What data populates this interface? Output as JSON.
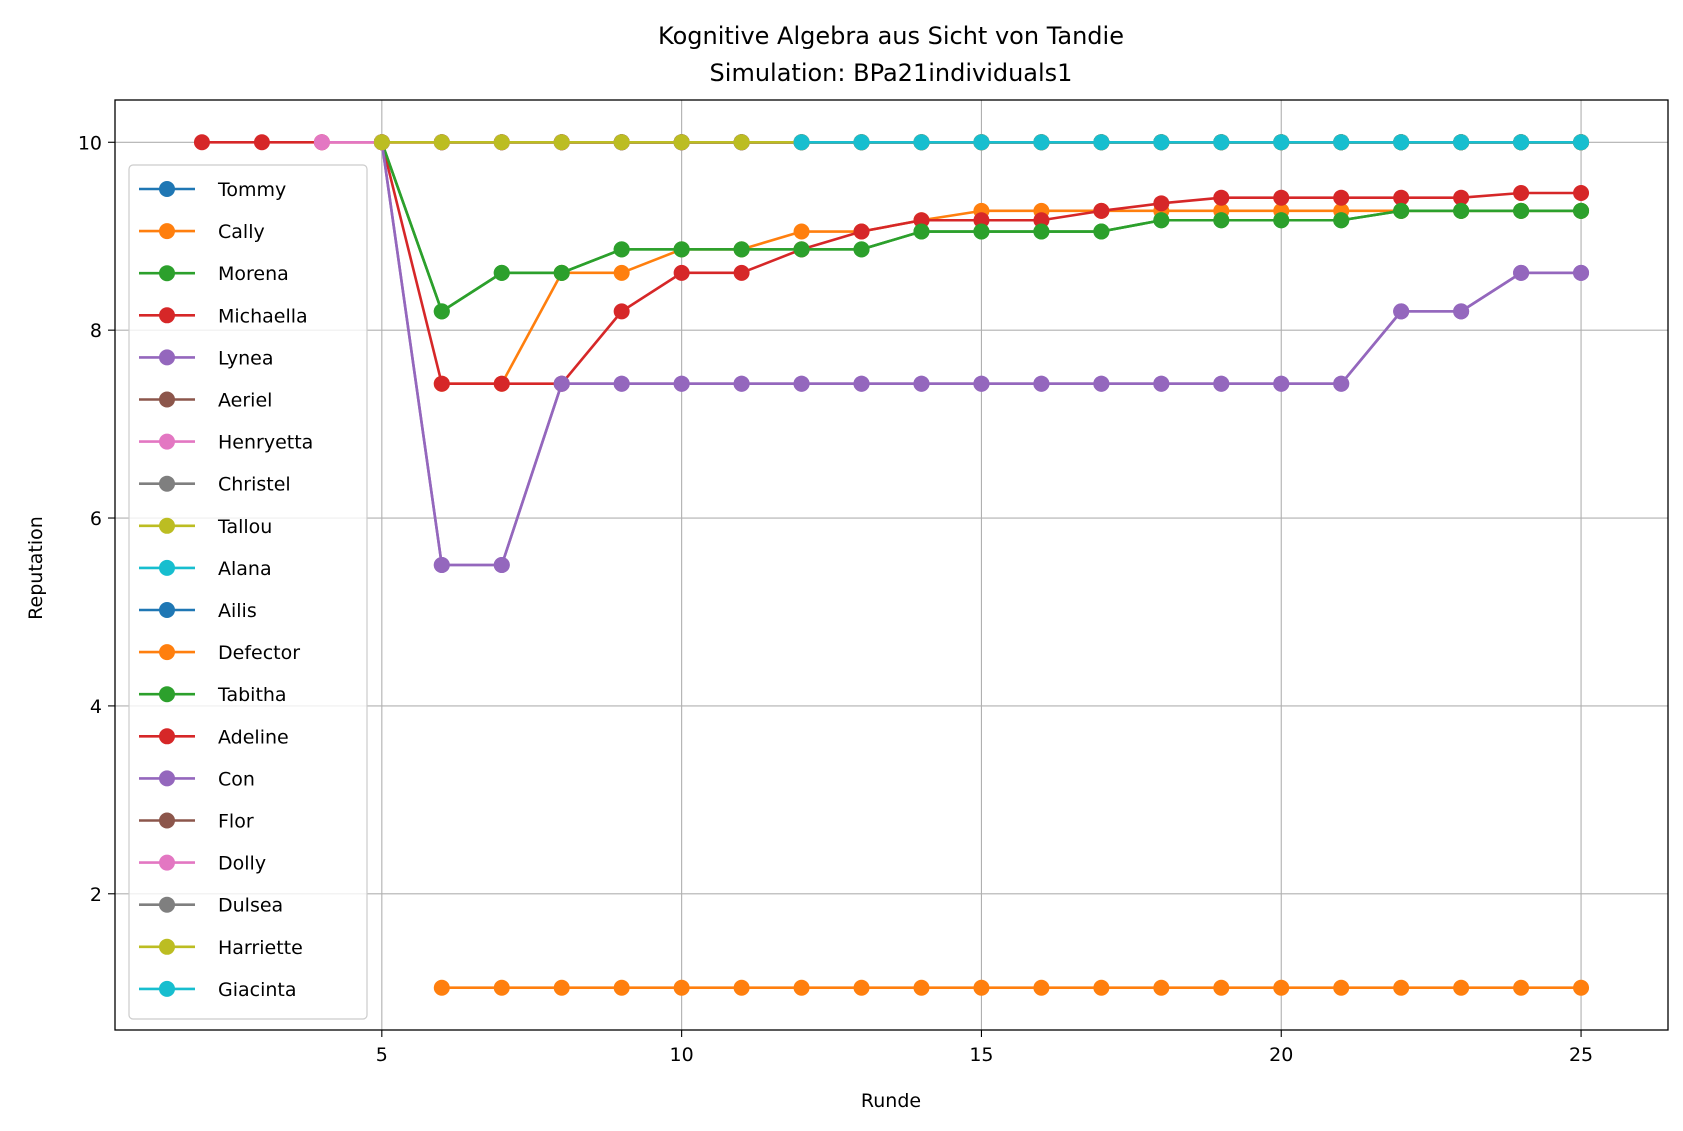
{
  "chart_data": {
    "type": "line",
    "title": "Kognitive Algebra aus Sicht von Tandie",
    "subtitle": "Simulation: BPa21individuals1",
    "xlabel": "Runde",
    "ylabel": "Reputation",
    "xlim": [
      0.55,
      26.45
    ],
    "ylim": [
      0.55,
      10.45
    ],
    "xticks": [
      5,
      10,
      15,
      20,
      25
    ],
    "yticks": [
      2,
      4,
      6,
      8,
      10
    ],
    "grid": true,
    "legend_position": "left",
    "series": [
      {
        "name": "Tommy",
        "color": "#1f77b4",
        "x": [
          6,
          7,
          8,
          9,
          10,
          11,
          12,
          13,
          14,
          15,
          16,
          17,
          18,
          19,
          20,
          21,
          22,
          23,
          24,
          25
        ],
        "y": [
          10,
          10,
          10,
          10,
          10,
          10,
          10,
          10,
          10,
          10,
          10,
          10,
          10,
          10,
          10,
          10,
          10,
          10,
          10,
          10
        ]
      },
      {
        "name": "Cally",
        "color": "#ff7f0e",
        "x": [
          6,
          7,
          8,
          9,
          10,
          11,
          12,
          13,
          14,
          15,
          16,
          17,
          18,
          19,
          20,
          21,
          22,
          23,
          24,
          25
        ],
        "y": [
          7.43,
          7.43,
          8.61,
          8.61,
          8.86,
          8.86,
          9.05,
          9.05,
          9.17,
          9.27,
          9.27,
          9.27,
          9.27,
          9.27,
          9.27,
          9.27,
          9.27,
          9.27,
          9.27,
          9.27
        ]
      },
      {
        "name": "Morena",
        "color": "#2ca02c",
        "x": [
          5,
          6,
          7,
          8,
          9,
          10,
          11,
          12,
          13,
          14,
          15,
          16,
          17,
          18,
          19,
          20,
          21,
          22,
          23,
          24,
          25
        ],
        "y": [
          10,
          8.2,
          8.61,
          8.61,
          8.86,
          8.86,
          8.86,
          8.86,
          8.86,
          9.05,
          9.05,
          9.05,
          9.05,
          9.17,
          9.17,
          9.17,
          9.17,
          9.27,
          9.27,
          9.27,
          9.27
        ]
      },
      {
        "name": "Michaella",
        "color": "#d62728",
        "x": [
          5,
          6,
          7,
          8,
          9,
          10,
          11,
          12,
          13,
          14,
          15,
          16,
          17,
          18,
          19,
          20,
          21,
          22,
          23,
          24,
          25
        ],
        "y": [
          10,
          7.43,
          7.43,
          7.43,
          8.2,
          8.61,
          8.61,
          8.86,
          9.05,
          9.17,
          9.17,
          9.17,
          9.27,
          9.35,
          9.41,
          9.41,
          9.41,
          9.41,
          9.41,
          9.46,
          9.46
        ]
      },
      {
        "name": "Lynea",
        "color": "#9467bd",
        "x": [
          5,
          6,
          7,
          8,
          9,
          10,
          11,
          12,
          13,
          14,
          15,
          16,
          17,
          18,
          19,
          20,
          21,
          22,
          23,
          24,
          25
        ],
        "y": [
          10,
          5.5,
          5.5,
          7.43,
          7.43,
          7.43,
          7.43,
          7.43,
          7.43,
          7.43,
          7.43,
          7.43,
          7.43,
          7.43,
          7.43,
          7.43,
          7.43,
          8.2,
          8.2,
          8.61,
          8.61
        ]
      },
      {
        "name": "Aeriel",
        "color": "#8c564b",
        "x": [
          8,
          9,
          10,
          11,
          12,
          13,
          14,
          15,
          16,
          17,
          18,
          19,
          20,
          21,
          22,
          23,
          24,
          25
        ],
        "y": [
          10,
          10,
          10,
          10,
          10,
          10,
          10,
          10,
          10,
          10,
          10,
          10,
          10,
          10,
          10,
          10,
          10,
          10
        ]
      },
      {
        "name": "Henryetta",
        "color": "#e377c2",
        "x": [
          4,
          5,
          6,
          7,
          8,
          9,
          10,
          11,
          12,
          13,
          14,
          15,
          16,
          17,
          18,
          19,
          20,
          21,
          22,
          23,
          24,
          25
        ],
        "y": [
          10,
          10,
          10,
          10,
          10,
          10,
          10,
          10,
          10,
          10,
          10,
          10,
          10,
          10,
          10,
          10,
          10,
          10,
          10,
          10,
          10,
          10
        ]
      },
      {
        "name": "Christel",
        "color": "#7f7f7f",
        "x": [
          9,
          10,
          11,
          12,
          13,
          14,
          15,
          16,
          17,
          18,
          19,
          20,
          21,
          22,
          23,
          24,
          25
        ],
        "y": [
          10,
          10,
          10,
          10,
          10,
          10,
          10,
          10,
          10,
          10,
          10,
          10,
          10,
          10,
          10,
          10,
          10
        ]
      },
      {
        "name": "Tallou",
        "color": "#bcbd22",
        "x": [
          5,
          6,
          7,
          8,
          9,
          10,
          11,
          12,
          13,
          14,
          15,
          16,
          17,
          18,
          19,
          20,
          21,
          22,
          23,
          24,
          25
        ],
        "y": [
          10,
          10,
          10,
          10,
          10,
          10,
          10,
          10,
          10,
          10,
          10,
          10,
          10,
          10,
          10,
          10,
          10,
          10,
          10,
          10,
          10
        ]
      },
      {
        "name": "Alana",
        "color": "#17becf",
        "x": [
          12,
          13,
          14,
          15,
          16,
          17,
          18,
          19,
          20,
          21,
          22,
          23,
          24,
          25
        ],
        "y": [
          10,
          10,
          10,
          10,
          10,
          10,
          10,
          10,
          10,
          10,
          10,
          10,
          10,
          10
        ]
      },
      {
        "name": "Ailis",
        "color": "#1f77b4",
        "x": [
          6,
          7,
          8,
          9,
          10,
          11,
          12,
          13,
          14,
          15,
          16,
          17,
          18,
          19,
          20,
          21,
          22,
          23,
          24,
          25
        ],
        "y": [
          10,
          10,
          10,
          10,
          10,
          10,
          10,
          10,
          10,
          10,
          10,
          10,
          10,
          10,
          10,
          10,
          10,
          10,
          10,
          10
        ]
      },
      {
        "name": "Defector",
        "color": "#ff7f0e",
        "x": [
          6,
          7,
          8,
          9,
          10,
          11,
          12,
          13,
          14,
          15,
          16,
          17,
          18,
          19,
          20,
          21,
          22,
          23,
          24,
          25
        ],
        "y": [
          1,
          1,
          1,
          1,
          1,
          1,
          1,
          1,
          1,
          1,
          1,
          1,
          1,
          1,
          1,
          1,
          1,
          1,
          1,
          1
        ]
      },
      {
        "name": "Tabitha",
        "color": "#2ca02c",
        "x": [
          5,
          6,
          7,
          8,
          9,
          10,
          11,
          12,
          13,
          14,
          15,
          16,
          17,
          18,
          19,
          20,
          21,
          22,
          23,
          24,
          25
        ],
        "y": [
          10,
          8.2,
          8.61,
          8.61,
          8.86,
          8.86,
          8.86,
          8.86,
          8.86,
          9.05,
          9.05,
          9.05,
          9.05,
          9.17,
          9.17,
          9.17,
          9.17,
          9.27,
          9.27,
          9.27,
          9.27
        ]
      },
      {
        "name": "Adeline",
        "color": "#d62728",
        "x": [
          2,
          3,
          4,
          5,
          6,
          7,
          8,
          9,
          10,
          11,
          12,
          13,
          14,
          15,
          16,
          17,
          18,
          19,
          20,
          21,
          22,
          23,
          24,
          25
        ],
        "y": [
          10,
          10,
          10,
          10,
          10,
          10,
          10,
          10,
          10,
          10,
          10,
          10,
          10,
          10,
          10,
          10,
          10,
          10,
          10,
          10,
          10,
          10,
          10,
          10
        ]
      },
      {
        "name": "Con",
        "color": "#9467bd",
        "x": [
          5,
          6,
          7,
          8,
          9,
          10,
          11,
          12,
          13,
          14,
          15,
          16,
          17,
          18,
          19,
          20,
          21,
          22,
          23,
          24,
          25
        ],
        "y": [
          10,
          5.5,
          5.5,
          7.43,
          7.43,
          7.43,
          7.43,
          7.43,
          7.43,
          7.43,
          7.43,
          7.43,
          7.43,
          7.43,
          7.43,
          7.43,
          7.43,
          8.2,
          8.2,
          8.61,
          8.61
        ]
      },
      {
        "name": "Flor",
        "color": "#8c564b",
        "x": [
          8,
          9,
          10,
          11,
          12,
          13,
          14,
          15,
          16,
          17,
          18,
          19,
          20,
          21,
          22,
          23,
          24,
          25
        ],
        "y": [
          10,
          10,
          10,
          10,
          10,
          10,
          10,
          10,
          10,
          10,
          10,
          10,
          10,
          10,
          10,
          10,
          10,
          10
        ]
      },
      {
        "name": "Dolly",
        "color": "#e377c2",
        "x": [
          4,
          5,
          6,
          7,
          8,
          9,
          10,
          11,
          12,
          13,
          14,
          15,
          16,
          17,
          18,
          19,
          20,
          21,
          22,
          23,
          24,
          25
        ],
        "y": [
          10,
          10,
          10,
          10,
          10,
          10,
          10,
          10,
          10,
          10,
          10,
          10,
          10,
          10,
          10,
          10,
          10,
          10,
          10,
          10,
          10,
          10
        ]
      },
      {
        "name": "Dulsea",
        "color": "#7f7f7f",
        "x": [
          9,
          10,
          11,
          12,
          13,
          14,
          15,
          16,
          17,
          18,
          19,
          20,
          21,
          22,
          23,
          24,
          25
        ],
        "y": [
          10,
          10,
          10,
          10,
          10,
          10,
          10,
          10,
          10,
          10,
          10,
          10,
          10,
          10,
          10,
          10,
          10
        ]
      },
      {
        "name": "Harriette",
        "color": "#bcbd22",
        "x": [
          5,
          6,
          7,
          8,
          9,
          10,
          11,
          12,
          13,
          14,
          15,
          16,
          17,
          18,
          19,
          20,
          21,
          22,
          23,
          24,
          25
        ],
        "y": [
          10,
          10,
          10,
          10,
          10,
          10,
          10,
          10,
          10,
          10,
          10,
          10,
          10,
          10,
          10,
          10,
          10,
          10,
          10,
          10,
          10
        ]
      },
      {
        "name": "Giacinta",
        "color": "#17becf",
        "x": [
          12,
          13,
          14,
          15,
          16,
          17,
          18,
          19,
          20,
          21,
          22,
          23,
          24,
          25
        ],
        "y": [
          10,
          10,
          10,
          10,
          10,
          10,
          10,
          10,
          10,
          10,
          10,
          10,
          10,
          10
        ]
      }
    ]
  }
}
